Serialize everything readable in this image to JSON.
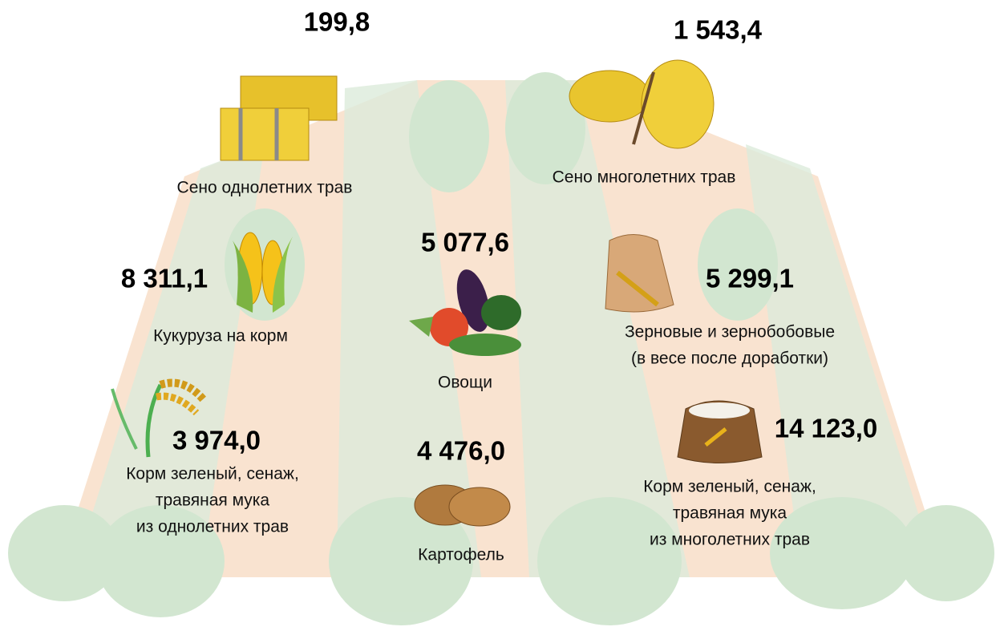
{
  "items": [
    {
      "value": "199,8",
      "label": [
        "Сено однолетних трав"
      ]
    },
    {
      "value": "1 543,4",
      "label": [
        "Сено многолетних трав"
      ]
    },
    {
      "value": "8 311,1",
      "label": [
        "Кукуруза на корм"
      ]
    },
    {
      "value": "5 077,6",
      "label": [
        "Овощи"
      ]
    },
    {
      "value": "5 299,1",
      "label": [
        "Зерновые и зернобобовые",
        "(в весе после доработки)"
      ]
    },
    {
      "value": "3 974,0",
      "label": [
        "Корм зеленый, сенаж,",
        "травяная мука",
        "из однолетних трав"
      ]
    },
    {
      "value": "4 476,0",
      "label": [
        "Картофель"
      ]
    },
    {
      "value": "14 123,0",
      "label": [
        "Корм зеленый, сенаж,",
        "травяная мука",
        "из многолетних трав"
      ]
    }
  ]
}
